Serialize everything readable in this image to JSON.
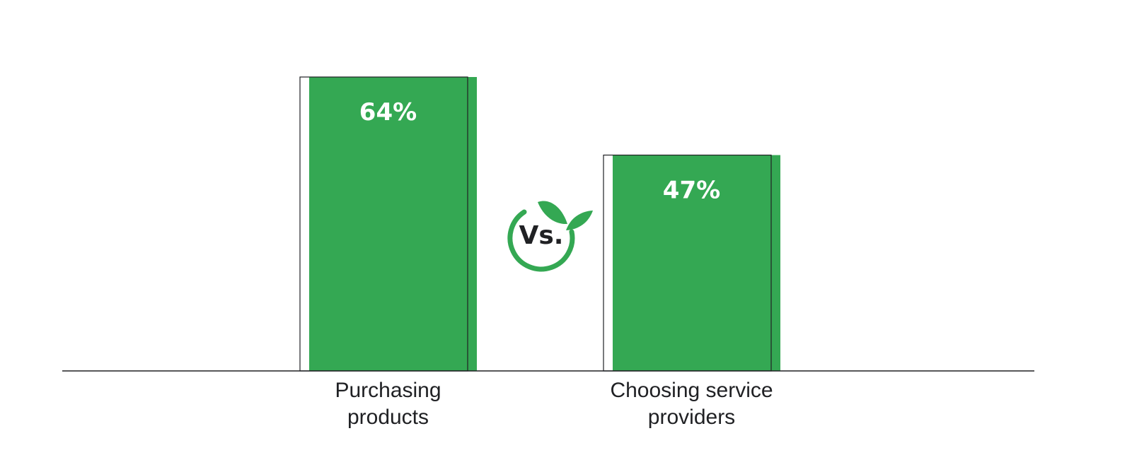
{
  "chart_data": {
    "type": "bar",
    "categories": [
      [
        "Purchasing",
        "products"
      ],
      [
        "Choosing service",
        "providers"
      ]
    ],
    "values": [
      64,
      47
    ],
    "data_labels": [
      "64%",
      "47%"
    ],
    "ylim": [
      0,
      100
    ],
    "title": "",
    "xlabel": "",
    "ylabel": "",
    "grid": false,
    "legend": "none"
  },
  "badge": {
    "text": "Vs."
  },
  "colors": {
    "bar": "#34a853",
    "text": "#202124",
    "axis": "#202124"
  }
}
